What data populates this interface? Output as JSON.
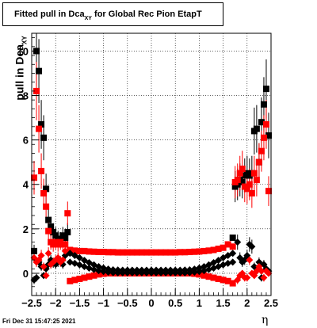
{
  "title": {
    "main": "Fitted pull in Dca",
    "sub": "XY",
    "rest": " for Global Rec Pion EtapT"
  },
  "ylabel": {
    "main": "pull in Dca",
    "sub": "XY"
  },
  "xlabel": "η",
  "timestamp": "Fri Dec 31 15:47:25 2021",
  "chart_data": {
    "type": "scatter",
    "title": "Fitted pull in Dca_XY for Global Rec Pion EtapT",
    "xlabel": "η",
    "ylabel": "pull in Dca_XY",
    "xlim": [
      -2.5,
      2.5
    ],
    "ylim": [
      -1.0,
      10.8
    ],
    "xticks": [
      -2.5,
      -2,
      -1.5,
      -1,
      -0.5,
      0,
      0.5,
      1,
      1.5,
      2,
      2.5
    ],
    "xtick_labels": [
      "−2.5",
      "−2",
      "−1.5",
      "−1",
      "−0.5",
      "0",
      "0.5",
      "1",
      "1.5",
      "2",
      "2.5"
    ],
    "yticks": [
      0,
      2,
      4,
      6,
      8,
      10
    ],
    "ytick_labels": [
      "0",
      "2",
      "4",
      "6",
      "8",
      "10"
    ],
    "grid": true,
    "legend": false,
    "series": [
      {
        "color": "#000000",
        "marker": "square",
        "points": [
          [
            -2.45,
            1.0
          ],
          [
            -2.4,
            10.0
          ],
          [
            -2.35,
            9.1
          ],
          [
            -2.3,
            6.7
          ],
          [
            -2.25,
            6.1
          ],
          [
            -2.2,
            3.8
          ],
          [
            -2.15,
            2.4
          ],
          [
            -2.1,
            2.1
          ],
          [
            -2.05,
            1.85
          ],
          [
            -2.0,
            1.7
          ],
          [
            -1.95,
            1.55
          ],
          [
            -1.9,
            1.5
          ],
          [
            -1.85,
            1.7
          ],
          [
            -1.8,
            1.6
          ],
          [
            -1.75,
            1.85
          ],
          [
            1.7,
            1.6
          ],
          [
            1.75,
            3.9
          ],
          [
            1.8,
            4.0
          ],
          [
            1.85,
            4.2
          ],
          [
            1.9,
            4.1
          ],
          [
            1.95,
            4.4
          ],
          [
            2.0,
            4.5
          ],
          [
            2.05,
            4.4
          ],
          [
            2.1,
            4.5
          ],
          [
            2.15,
            6.4
          ],
          [
            2.2,
            6.5
          ],
          [
            2.25,
            5.0
          ],
          [
            2.3,
            6.8
          ],
          [
            2.35,
            7.6
          ],
          [
            2.4,
            8.3
          ],
          [
            2.45,
            6.2
          ]
        ]
      },
      {
        "color": "#ff0000",
        "marker": "square",
        "points": [
          [
            -2.45,
            4.3
          ],
          [
            -2.4,
            8.2
          ],
          [
            -2.35,
            6.5
          ],
          [
            -2.3,
            4.6
          ],
          [
            -2.25,
            3.6
          ],
          [
            -2.2,
            3.0
          ],
          [
            -2.15,
            1.9
          ],
          [
            -2.1,
            1.4
          ],
          [
            -2.05,
            1.3
          ],
          [
            -2.0,
            1.4
          ],
          [
            -1.95,
            1.3
          ],
          [
            -1.9,
            1.4
          ],
          [
            -1.85,
            1.3
          ],
          [
            -1.8,
            1.3
          ],
          [
            -1.75,
            2.7
          ],
          [
            1.7,
            1.2
          ],
          [
            1.75,
            4.1
          ],
          [
            1.8,
            4.2
          ],
          [
            1.85,
            4.5
          ],
          [
            1.9,
            4.7
          ],
          [
            1.95,
            3.9
          ],
          [
            2.0,
            3.8
          ],
          [
            2.05,
            4.0
          ],
          [
            2.1,
            3.6
          ],
          [
            2.15,
            4.5
          ],
          [
            2.2,
            4.2
          ],
          [
            2.25,
            5.0
          ],
          [
            2.3,
            5.5
          ],
          [
            2.35,
            6.1
          ],
          [
            2.4,
            6.7
          ],
          [
            2.45,
            3.7
          ]
        ]
      },
      {
        "color": "#ff0000",
        "marker": "square",
        "points": [
          [
            -1.7,
            1.05
          ],
          [
            -1.6,
            1.02
          ],
          [
            -1.5,
            1.0
          ],
          [
            -1.4,
            1.0
          ],
          [
            -1.3,
            0.98
          ],
          [
            -1.2,
            0.97
          ],
          [
            -1.1,
            0.96
          ],
          [
            -1.0,
            0.96
          ],
          [
            -0.9,
            0.95
          ],
          [
            -0.8,
            0.95
          ],
          [
            -0.7,
            0.94
          ],
          [
            -0.6,
            0.94
          ],
          [
            -0.5,
            0.94
          ],
          [
            -0.4,
            0.94
          ],
          [
            -0.3,
            0.94
          ],
          [
            -0.2,
            0.94
          ],
          [
            -0.1,
            0.94
          ],
          [
            0.0,
            0.94
          ],
          [
            0.1,
            0.94
          ],
          [
            0.2,
            0.94
          ],
          [
            0.3,
            0.94
          ],
          [
            0.4,
            0.94
          ],
          [
            0.5,
            0.94
          ],
          [
            0.6,
            0.95
          ],
          [
            0.7,
            0.95
          ],
          [
            0.8,
            0.96
          ],
          [
            0.9,
            0.97
          ],
          [
            1.0,
            0.98
          ],
          [
            1.1,
            1.0
          ],
          [
            1.2,
            1.02
          ],
          [
            1.3,
            1.05
          ],
          [
            1.4,
            1.1
          ],
          [
            1.5,
            1.15
          ],
          [
            1.6,
            1.3
          ]
        ]
      },
      {
        "color": "#ff0000",
        "marker": "square",
        "points": [
          [
            -1.7,
            -0.35
          ],
          [
            -1.6,
            -0.3
          ],
          [
            -1.5,
            -0.25
          ],
          [
            -1.4,
            -0.2
          ],
          [
            -1.3,
            -0.15
          ],
          [
            -1.2,
            -0.1
          ],
          [
            -1.1,
            -0.05
          ],
          [
            -1.0,
            -0.02
          ],
          [
            -0.9,
            0.0
          ],
          [
            -0.8,
            0.0
          ],
          [
            -0.7,
            0.0
          ],
          [
            -0.6,
            0.0
          ],
          [
            -0.5,
            0.0
          ],
          [
            -0.4,
            0.0
          ],
          [
            -0.3,
            0.0
          ],
          [
            -0.2,
            0.0
          ],
          [
            -0.1,
            0.0
          ],
          [
            0.0,
            0.0
          ],
          [
            0.1,
            0.0
          ],
          [
            0.2,
            0.0
          ],
          [
            0.3,
            0.0
          ],
          [
            0.4,
            0.0
          ],
          [
            0.5,
            0.0
          ],
          [
            0.6,
            0.0
          ],
          [
            0.7,
            0.0
          ],
          [
            0.8,
            0.0
          ],
          [
            0.9,
            -0.02
          ],
          [
            1.0,
            -0.05
          ],
          [
            1.1,
            -0.1
          ],
          [
            1.2,
            -0.15
          ],
          [
            1.3,
            -0.2
          ],
          [
            1.4,
            -0.25
          ],
          [
            1.5,
            -0.3
          ],
          [
            1.6,
            -0.35
          ],
          [
            1.7,
            -0.45
          ]
        ]
      },
      {
        "color": "#000000",
        "marker": "diamond",
        "points": [
          [
            -1.7,
            0.9
          ],
          [
            -1.6,
            0.8
          ],
          [
            -1.5,
            0.7
          ],
          [
            -1.4,
            0.58
          ],
          [
            -1.3,
            0.48
          ],
          [
            -1.2,
            0.38
          ],
          [
            -1.1,
            0.3
          ],
          [
            -1.0,
            0.24
          ],
          [
            -0.9,
            0.19
          ],
          [
            -0.8,
            0.16
          ],
          [
            -0.7,
            0.15
          ],
          [
            -0.6,
            0.14
          ],
          [
            -0.5,
            0.14
          ],
          [
            -0.4,
            0.14
          ],
          [
            -0.3,
            0.14
          ],
          [
            -0.2,
            0.14
          ],
          [
            -0.1,
            0.14
          ],
          [
            0.0,
            0.14
          ],
          [
            0.1,
            0.14
          ],
          [
            0.2,
            0.14
          ],
          [
            0.3,
            0.14
          ],
          [
            0.4,
            0.14
          ],
          [
            0.5,
            0.14
          ],
          [
            0.6,
            0.14
          ],
          [
            0.7,
            0.15
          ],
          [
            0.8,
            0.16
          ],
          [
            0.9,
            0.19
          ],
          [
            1.0,
            0.24
          ],
          [
            1.1,
            0.3
          ],
          [
            1.2,
            0.38
          ],
          [
            1.3,
            0.48
          ],
          [
            1.4,
            0.58
          ],
          [
            1.5,
            0.7
          ],
          [
            1.6,
            0.8
          ],
          [
            1.7,
            0.9
          ]
        ]
      },
      {
        "color": "#000000",
        "marker": "diamond",
        "points": [
          [
            -1.7,
            0.5
          ],
          [
            -1.6,
            0.45
          ],
          [
            -1.5,
            0.38
          ],
          [
            -1.4,
            0.3
          ],
          [
            -1.3,
            0.23
          ],
          [
            -1.2,
            0.17
          ],
          [
            -1.1,
            0.12
          ],
          [
            -1.0,
            0.08
          ],
          [
            -0.9,
            0.05
          ],
          [
            -0.8,
            0.03
          ],
          [
            -0.7,
            0.02
          ],
          [
            -0.6,
            0.02
          ],
          [
            -0.5,
            0.02
          ],
          [
            -0.4,
            0.02
          ],
          [
            -0.3,
            0.02
          ],
          [
            -0.2,
            0.02
          ],
          [
            -0.1,
            0.02
          ],
          [
            0.0,
            0.02
          ],
          [
            0.1,
            0.02
          ],
          [
            0.2,
            0.02
          ],
          [
            0.3,
            0.02
          ],
          [
            0.4,
            0.02
          ],
          [
            0.5,
            0.02
          ],
          [
            0.6,
            0.02
          ],
          [
            0.7,
            0.02
          ],
          [
            0.8,
            0.03
          ],
          [
            0.9,
            0.05
          ],
          [
            1.0,
            0.08
          ],
          [
            1.1,
            0.12
          ],
          [
            1.2,
            0.17
          ],
          [
            1.3,
            0.23
          ],
          [
            1.4,
            0.3
          ],
          [
            1.5,
            0.38
          ],
          [
            1.6,
            0.45
          ],
          [
            1.7,
            0.5
          ]
        ]
      },
      {
        "color": "#000000",
        "marker": "diamond",
        "points": [
          [
            -2.45,
            -0.3
          ],
          [
            -2.4,
            -0.2
          ],
          [
            -2.35,
            0.5
          ],
          [
            -2.3,
            0.3
          ],
          [
            -2.25,
            -0.1
          ],
          [
            -2.2,
            0.2
          ],
          [
            -2.15,
            0.4
          ],
          [
            -2.1,
            0.6
          ],
          [
            -2.05,
            0.45
          ],
          [
            -2.0,
            0.4
          ],
          [
            -1.95,
            0.5
          ],
          [
            -1.9,
            0.55
          ],
          [
            -1.85,
            0.4
          ],
          [
            -1.8,
            0.8
          ],
          [
            1.8,
            1.4
          ],
          [
            1.85,
            0.7
          ],
          [
            1.9,
            0.5
          ],
          [
            1.95,
            0.6
          ],
          [
            2.0,
            0.8
          ],
          [
            2.05,
            1.3
          ],
          [
            2.1,
            1.2
          ],
          [
            2.15,
            0.3
          ],
          [
            2.2,
            0.2
          ],
          [
            2.25,
            0.5
          ],
          [
            2.3,
            -0.2
          ],
          [
            2.35,
            0.4
          ],
          [
            2.4,
            0.2
          ],
          [
            2.45,
            0.1
          ]
        ]
      },
      {
        "color": "#ff0000",
        "marker": "diamond",
        "points": [
          [
            -2.45,
            0.7
          ],
          [
            -2.4,
            0.5
          ],
          [
            -2.35,
            0.6
          ],
          [
            -2.3,
            0.8
          ],
          [
            -2.25,
            0.3
          ],
          [
            -2.2,
            -0.1
          ],
          [
            -2.15,
            0.9
          ],
          [
            -2.1,
            0.4
          ],
          [
            -2.05,
            0.5
          ],
          [
            -2.0,
            0.6
          ],
          [
            -1.95,
            0.7
          ],
          [
            -1.9,
            0.5
          ],
          [
            -1.85,
            0.6
          ],
          [
            -1.8,
            1.0
          ],
          [
            1.8,
            -0.3
          ],
          [
            1.85,
            -0.1
          ],
          [
            1.9,
            0.0
          ],
          [
            1.95,
            -0.2
          ],
          [
            2.0,
            -0.2
          ],
          [
            2.05,
            0.6
          ],
          [
            2.1,
            0.0
          ],
          [
            2.15,
            -0.1
          ],
          [
            2.2,
            0.1
          ],
          [
            2.25,
            0.3
          ],
          [
            2.3,
            0.1
          ],
          [
            2.35,
            -0.2
          ],
          [
            2.4,
            0.1
          ],
          [
            2.45,
            0.0
          ]
        ]
      }
    ]
  }
}
